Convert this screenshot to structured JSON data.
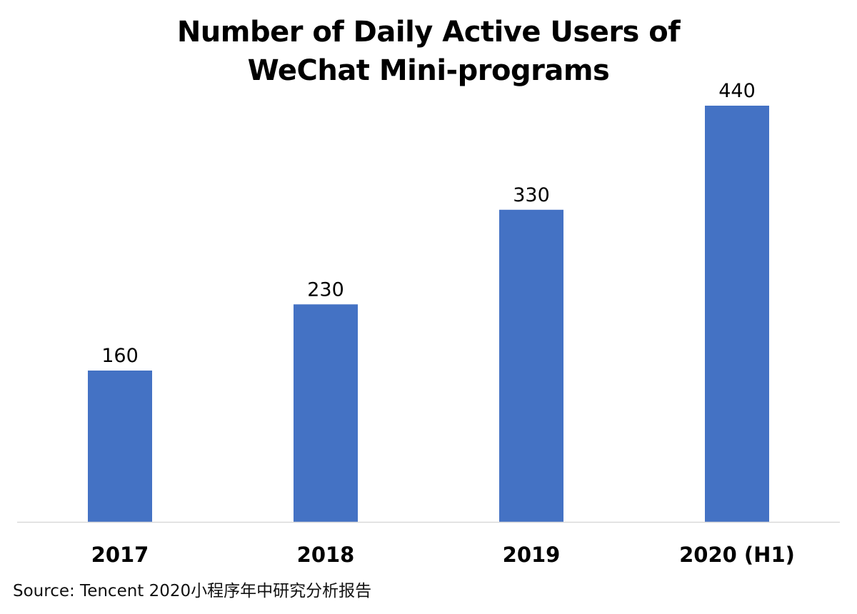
{
  "chart_data": {
    "type": "bar",
    "title_lines": [
      "Number of Daily Active Users of",
      "WeChat Mini-programs"
    ],
    "categories": [
      "2017",
      "2018",
      "2019",
      "2020 (H1)"
    ],
    "values": [
      160,
      230,
      330,
      440
    ],
    "data_labels": [
      "160",
      "230",
      "330",
      "440"
    ],
    "xlabel": "",
    "ylabel": "",
    "ylim": [
      0,
      440
    ],
    "grid": false,
    "legend": "none",
    "bar_color": "#4472C4",
    "axis_color": "#D9D9D9"
  },
  "source": "Source: Tencent 2020小程序年中研究分析报告"
}
